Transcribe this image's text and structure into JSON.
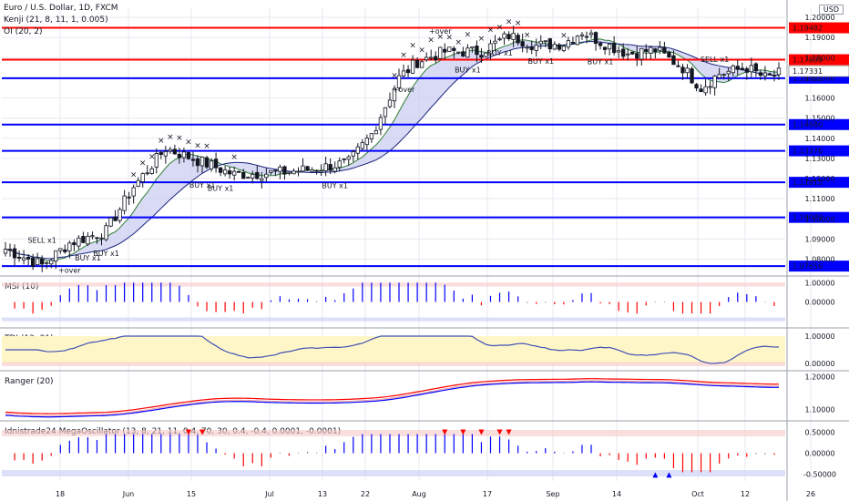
{
  "header": {
    "symbol_line": "Euro / U.S. Dollar, 1D, FXCM",
    "indicators": [
      "Kenji (21, 8, 11, 1, 0.005)",
      "OI (20, 2)"
    ],
    "currency_badge": "USD"
  },
  "colors": {
    "bull": "#ffffff",
    "bear": "#131722",
    "red_line": "#ff0000",
    "blue_line": "#0000ff",
    "band_fill": "#c9ccf0",
    "band_green": "#c8ebc8",
    "signal_purple": "#5b5bd6",
    "sell_red": "#ff3b3b",
    "panel_pink": "#f7c6c6",
    "panel_blue": "#c7cbf5",
    "tdi_yellow": "#fff6c8",
    "grid": "#e8eaf0"
  },
  "chart_data": [
    {
      "type": "candlestick",
      "ylim": [
        1.073,
        1.205
      ],
      "price_ticks": [
        "1.20000",
        "1.19000",
        "1.18000",
        "1.17000",
        "1.16000",
        "1.15000",
        "1.14000",
        "1.13000",
        "1.12000",
        "1.11000",
        "1.10000",
        "1.09000",
        "1.08000"
      ],
      "x_ticks": [
        "18",
        "Jun",
        "15",
        "Jul",
        "13",
        "22",
        "Aug",
        "17",
        "Sep",
        "14",
        "Oct",
        "12",
        "26"
      ],
      "current_price": "1.17331",
      "levels": [
        {
          "value": 1.19482,
          "label": "1.19482",
          "color": "red"
        },
        {
          "value": 1.17899,
          "label": "1.17899",
          "color": "red"
        },
        {
          "value": 1.16982,
          "label": "1.16982",
          "color": "blue"
        },
        {
          "value": 1.1468,
          "label": "1.14680",
          "color": "blue"
        },
        {
          "value": 1.13376,
          "label": "1.13376",
          "color": "blue"
        },
        {
          "value": 1.11815,
          "label": "1.11815",
          "color": "blue"
        },
        {
          "value": 1.10072,
          "label": "1.10072",
          "color": "blue"
        },
        {
          "value": 1.07656,
          "label": "1.07656",
          "color": "blue"
        }
      ],
      "signals": [
        {
          "text": "SELL x1",
          "kind": "sell",
          "bar": 8
        },
        {
          "text": "+over",
          "kind": "buy",
          "bar": 14
        },
        {
          "text": "BUY x1",
          "kind": "buy",
          "bar": 22
        },
        {
          "text": "BUY x1",
          "kind": "buy",
          "bar": 18
        },
        {
          "text": "BUY x1",
          "kind": "buy",
          "bar": 43
        },
        {
          "text": "BUY x1",
          "kind": "buy",
          "bar": 47
        },
        {
          "text": "BUY x1",
          "kind": "buy",
          "bar": 72
        },
        {
          "text": "+over",
          "kind": "buy",
          "bar": 87
        },
        {
          "text": "+over",
          "kind": "sell",
          "bar": 95
        },
        {
          "text": "BUY x1",
          "kind": "buy",
          "bar": 101
        },
        {
          "text": "BUY x1",
          "kind": "buy",
          "bar": 108
        },
        {
          "text": "BUY x1",
          "kind": "buy",
          "bar": 117
        },
        {
          "text": "BUY x1",
          "kind": "buy",
          "bar": 130
        },
        {
          "text": "SELL x1",
          "kind": "sell",
          "bar": 155
        }
      ]
    },
    {
      "type": "bar",
      "title": "MSI (10)",
      "ticks": [
        "1.00000",
        "0.00000"
      ],
      "ylim": [
        -1.2,
        1.2
      ]
    },
    {
      "type": "line",
      "title": "TDI (13, 21)",
      "ticks": [
        "1.00000",
        "0.00000"
      ],
      "ylim": [
        -0.2,
        1.2
      ]
    },
    {
      "type": "line",
      "title": "Ranger (20)",
      "ticks": [
        "1.20000",
        "1.10000"
      ],
      "ylim": [
        1.07,
        1.21
      ]
    },
    {
      "type": "bar",
      "title": "Idnistrade24 MegaOscillator (13, 8, 21, 11, 0.4, 70, 30, 0.4, -0.4, 0.0001, -0.0001)",
      "ticks": [
        "0.50000",
        "0.00000",
        "-0.50000"
      ],
      "ylim": [
        -0.7,
        0.7
      ]
    }
  ]
}
